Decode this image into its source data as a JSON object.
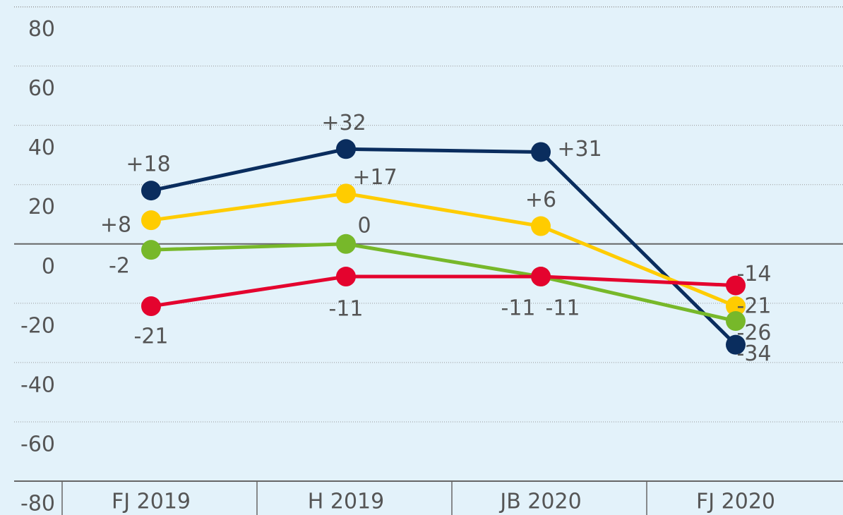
{
  "chart_data": {
    "type": "line",
    "categories": [
      "FJ 2019",
      "H 2019",
      "JB 2020",
      "FJ 2020"
    ],
    "series": [
      {
        "color": "#0a2d5e",
        "values": [
          18,
          32,
          31,
          -34
        ],
        "value_labels": [
          "+18",
          "+32",
          "+31",
          "-34"
        ]
      },
      {
        "color": "#ffcc00",
        "values": [
          8,
          17,
          6,
          -21
        ],
        "value_labels": [
          "+8",
          "+17",
          "+6",
          "-21"
        ]
      },
      {
        "color": "#77b82a",
        "values": [
          -2,
          0,
          -11,
          -26
        ],
        "value_labels": [
          "-2",
          "0",
          "-11",
          "-26"
        ]
      },
      {
        "color": "#e4032e",
        "values": [
          -21,
          -11,
          -11,
          -14
        ],
        "value_labels": [
          "-21",
          "-11",
          "-11",
          "-14"
        ]
      }
    ],
    "ylim": [
      -80,
      100
    ],
    "yticks": [
      80,
      60,
      40,
      20,
      0,
      -20,
      -40,
      -60,
      -80
    ],
    "grid": true
  }
}
